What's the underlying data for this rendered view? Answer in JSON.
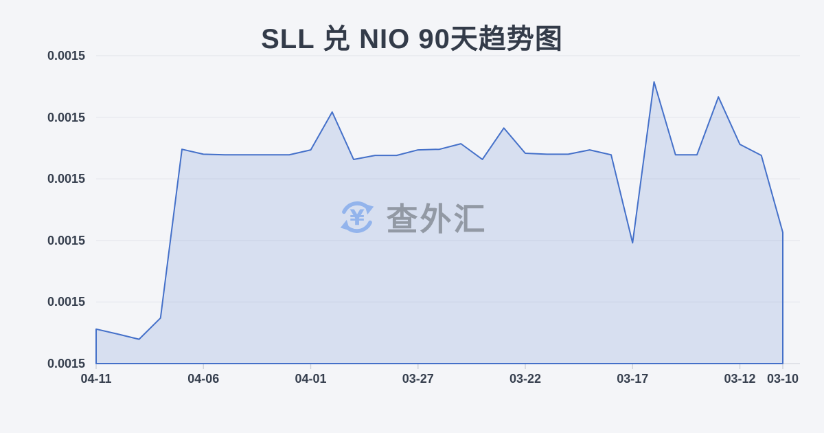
{
  "page": {
    "background_color": "#f4f5f8"
  },
  "chart_data": {
    "type": "area",
    "title": "SLL 兑 NIO 90天趋势图",
    "x_axis_order": "reverse-chronological-left-to-right",
    "x_dates": [
      "04-11",
      "04-10",
      "04-09",
      "04-08",
      "04-07",
      "04-06",
      "04-05",
      "04-04",
      "04-03",
      "04-02",
      "04-01",
      "03-31",
      "03-30",
      "03-29",
      "03-28",
      "03-27",
      "03-26",
      "03-25",
      "03-24",
      "03-23",
      "03-22",
      "03-21",
      "03-20",
      "03-19",
      "03-18",
      "03-17",
      "03-16",
      "03-15",
      "03-14",
      "03-13",
      "03-12",
      "03-11",
      "03-10"
    ],
    "values_relative_0to1": [
      0.112,
      0.096,
      0.079,
      0.148,
      0.696,
      0.68,
      0.678,
      0.678,
      0.678,
      0.678,
      0.694,
      0.817,
      0.663,
      0.676,
      0.676,
      0.694,
      0.696,
      0.714,
      0.663,
      0.765,
      0.683,
      0.68,
      0.68,
      0.694,
      0.678,
      0.392,
      0.915,
      0.678,
      0.678,
      0.866,
      0.712,
      0.676,
      0.426
    ],
    "ytick_labels": [
      "0.0015",
      "0.0015",
      "0.0015",
      "0.0015",
      "0.0015",
      "0.0015"
    ],
    "xticks": [
      {
        "label": "04-11",
        "i": 0
      },
      {
        "label": "04-06",
        "i": 5
      },
      {
        "label": "04-01",
        "i": 10
      },
      {
        "label": "03-27",
        "i": 15
      },
      {
        "label": "03-22",
        "i": 20
      },
      {
        "label": "03-17",
        "i": 25
      },
      {
        "label": "03-12",
        "i": 30
      },
      {
        "label": "03-10",
        "i": 32
      }
    ],
    "grid": true,
    "legend": "none",
    "colors": {
      "line": "#4470c9",
      "fill": "rgba(68,112,201,0.16)",
      "gridline": "#e7e9ee",
      "axis_line": "#d9dce2",
      "tick_mark": "#ccd0d8",
      "axis_text": "#363f4e",
      "title_text": "#333b49"
    }
  },
  "watermark": {
    "text": "查外汇",
    "icon": "currency-exchange-icon",
    "icon_color": "#93b4ec",
    "text_color": "#8d949e"
  }
}
